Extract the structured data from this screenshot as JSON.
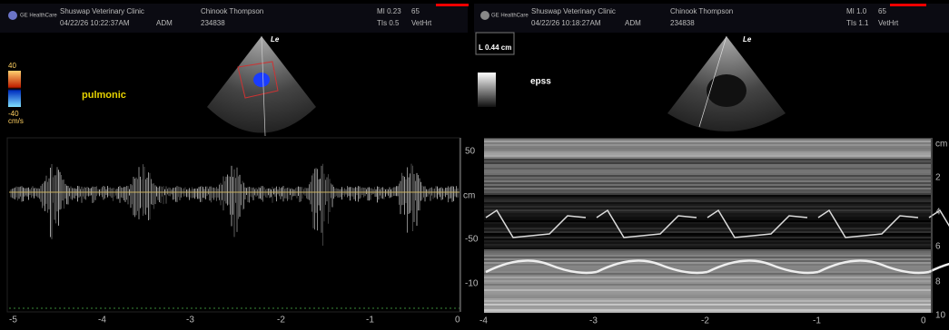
{
  "panels": [
    {
      "header": {
        "logo": "GE HealthCare",
        "clinic": "Shuswap Veterinary Clinic",
        "datetime": "04/22/26 10:22:37AM",
        "operator": "ADM",
        "patient": "Chinook Thompson",
        "id": "234838",
        "mi": "MI 0.23",
        "tis": "TIs 0.5",
        "frame_rate": "65",
        "preset": "VetHrt"
      },
      "probe_marker": "Le",
      "color_scale": {
        "max": "40",
        "min": "-40",
        "unit": "cm/s"
      },
      "annotation": "pulmonic",
      "y_axis": [
        "50",
        "cm",
        "-50",
        "-10"
      ],
      "x_axis": [
        "-5",
        "-4",
        "-3",
        "-2",
        "-1",
        "0"
      ]
    },
    {
      "header": {
        "logo": "GE HealthCare",
        "clinic": "Shuswap Veterinary Clinic",
        "datetime": "04/22/26 10:18:27AM",
        "operator": "ADM",
        "patient": "Chinook Thompson",
        "id": "234838",
        "mi": "MI 1.0",
        "tis": "TIs 1.1",
        "frame_rate": "65",
        "preset": "VetHrt"
      },
      "probe_marker": "Le",
      "measurement": "L 0.44 cm",
      "annotation": "epss",
      "y_axis": [
        "cm",
        "2",
        "4",
        "6",
        "8",
        "10"
      ],
      "x_axis": [
        "-4",
        "-3",
        "-2",
        "-1",
        "0"
      ]
    }
  ]
}
